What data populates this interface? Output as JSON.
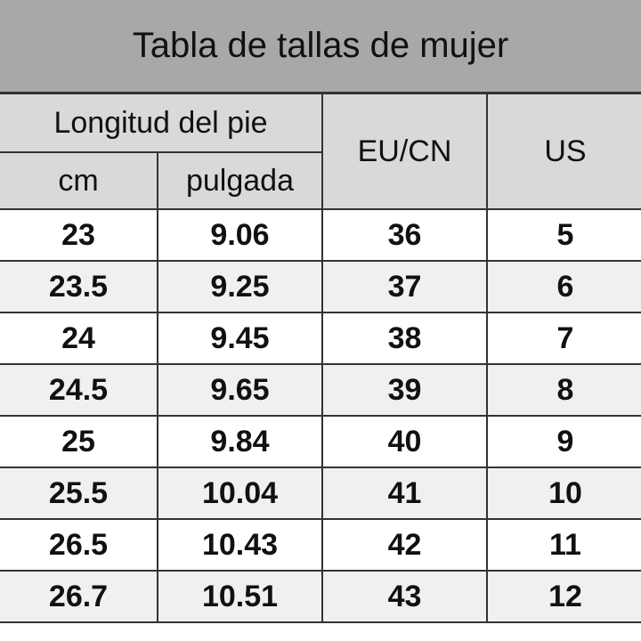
{
  "title": "Tabla de tallas de mujer",
  "headers": {
    "group": "Longitud del pie",
    "cm": "cm",
    "inch": "pulgada",
    "eu": "EU/CN",
    "us": "US"
  },
  "rows": [
    [
      "23",
      "9.06",
      "36",
      "5"
    ],
    [
      "23.5",
      "9.25",
      "37",
      "6"
    ],
    [
      "24",
      "9.45",
      "38",
      "7"
    ],
    [
      "24.5",
      "9.65",
      "39",
      "8"
    ],
    [
      "25",
      "9.84",
      "40",
      "9"
    ],
    [
      "25.5",
      "10.04",
      "41",
      "10"
    ],
    [
      "26.5",
      "10.43",
      "42",
      "11"
    ],
    [
      "26.7",
      "10.51",
      "43",
      "12"
    ]
  ],
  "colors": {
    "title_bg": "#a8a8a8",
    "header_bg": "#d9d9d9",
    "alt_row": "#f0f0f0"
  }
}
